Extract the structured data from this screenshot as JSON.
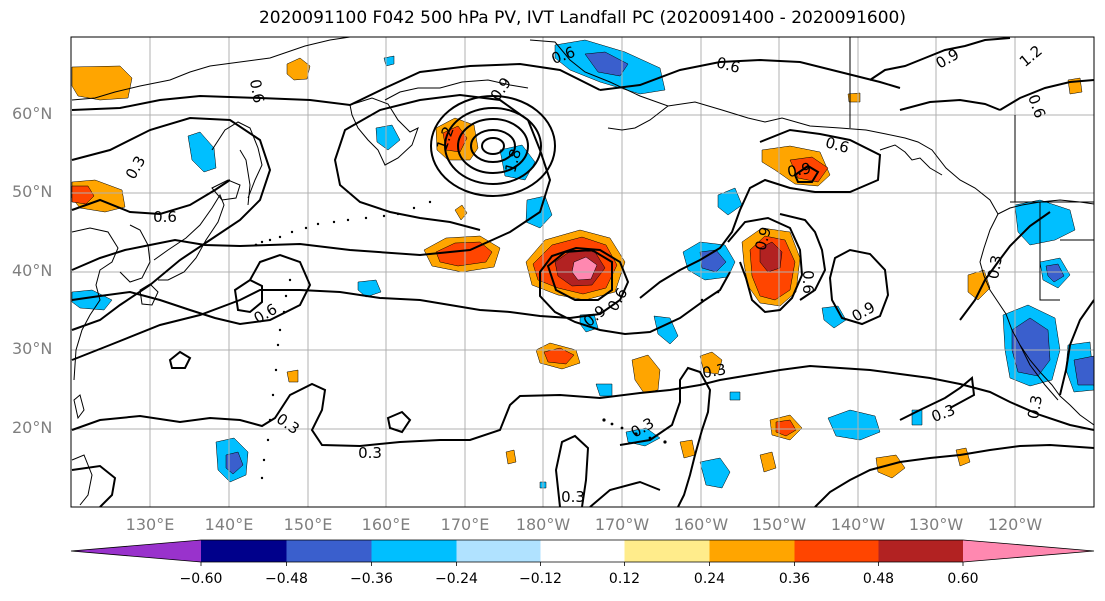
{
  "title": "2020091100 F042 500 hPa PV, IVT Landfall PC (2020091400 - 2020091600)",
  "lat_labels": [
    "60°N",
    "50°N",
    "40°N",
    "30°N",
    "20°N"
  ],
  "lon_labels": [
    "130°E",
    "140°E",
    "150°E",
    "160°E",
    "170°E",
    "180°W",
    "170°W",
    "160°W",
    "150°W",
    "140°W",
    "130°W",
    "120°W"
  ],
  "contour_labels": [
    "0.6",
    "0.6",
    "0.9",
    "1.2",
    "1.8",
    "0.6",
    "0.3",
    "0.6",
    "0.9",
    "0.6",
    "0.6",
    "0.9",
    "0.6",
    "0.9",
    "0.3",
    "0.3",
    "0.3",
    "0.3",
    "0.3",
    "0.3",
    "0.3",
    "0.3",
    "0.6",
    "0.9",
    "1.2",
    "0.6",
    "0.9"
  ],
  "colorbar": {
    "ticks": [
      "−0.60",
      "−0.48",
      "−0.36",
      "−0.24",
      "−0.12",
      "0.12",
      "0.24",
      "0.36",
      "0.48",
      "0.60"
    ],
    "colors": [
      "#9932cc",
      "#00008b",
      "#3a5fcd",
      "#00bfff",
      "#b0e2ff",
      "#ffffff",
      "#ffec8b",
      "#ffa500",
      "#ff4500",
      "#b22222",
      "#ff88b0"
    ]
  }
}
